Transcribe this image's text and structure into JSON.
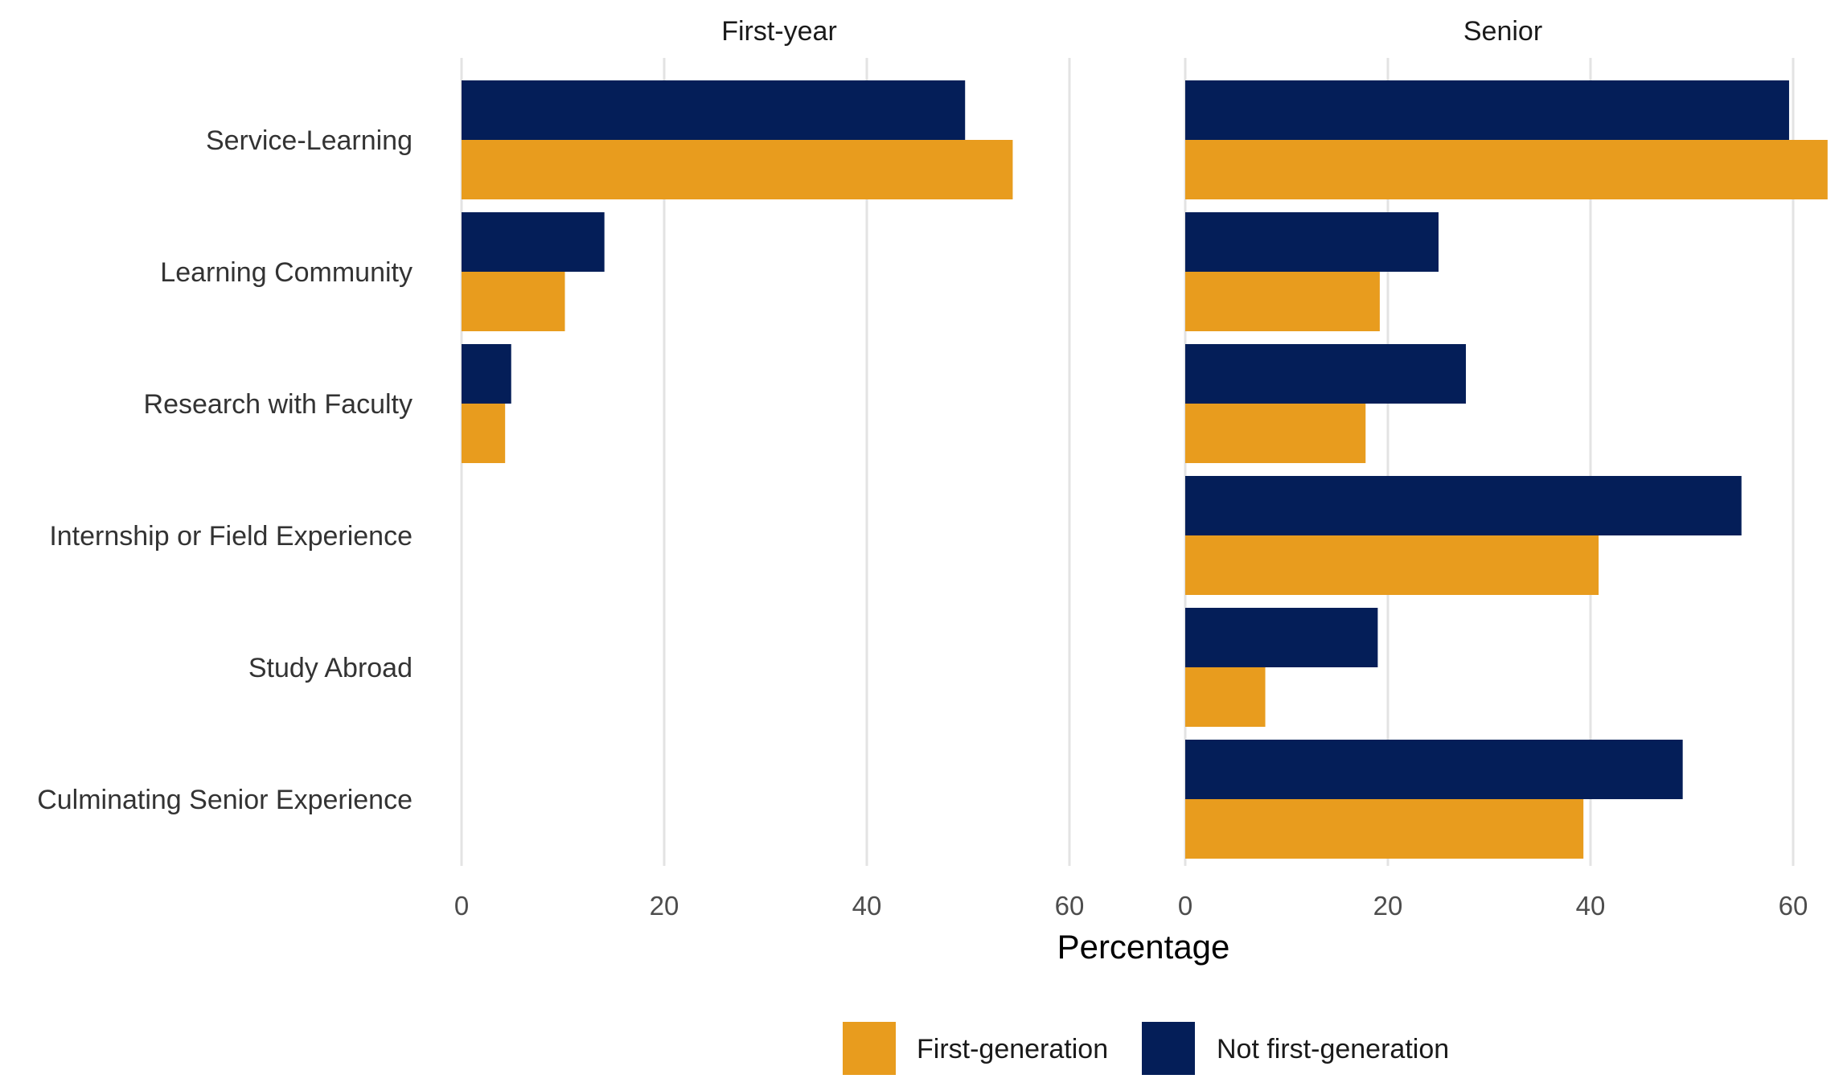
{
  "chart_data": {
    "type": "bar",
    "orientation": "horizontal",
    "xlabel": "Percentage",
    "ylabel": "",
    "xlim": [
      0,
      64
    ],
    "xticks": [
      0,
      20,
      40,
      60
    ],
    "grid": true,
    "legend_position": "bottom",
    "categories": [
      "Service-Learning",
      "Learning Community",
      "Research with Faculty",
      "Internship or Field Experience",
      "Study Abroad",
      "Culminating Senior Experience"
    ],
    "panels": [
      {
        "title": "First-year",
        "series": [
          {
            "name": "Not first-generation",
            "values": [
              49.7,
              14.1,
              4.9,
              null,
              null,
              null
            ]
          },
          {
            "name": "First-generation",
            "values": [
              54.4,
              10.2,
              4.3,
              null,
              null,
              null
            ]
          }
        ]
      },
      {
        "title": "Senior",
        "series": [
          {
            "name": "Not first-generation",
            "values": [
              59.6,
              25.0,
              27.7,
              54.9,
              19.0,
              49.1
            ]
          },
          {
            "name": "First-generation",
            "values": [
              63.4,
              19.2,
              17.8,
              40.8,
              7.9,
              39.3
            ]
          }
        ]
      }
    ],
    "legend": [
      {
        "name": "First-generation",
        "color": "#E89C1E"
      },
      {
        "name": "Not first-generation",
        "color": "#041E58"
      }
    ],
    "colors": {
      "First-generation": "#E89C1E",
      "Not first-generation": "#041E58",
      "grid": "#e3e3e3"
    }
  }
}
